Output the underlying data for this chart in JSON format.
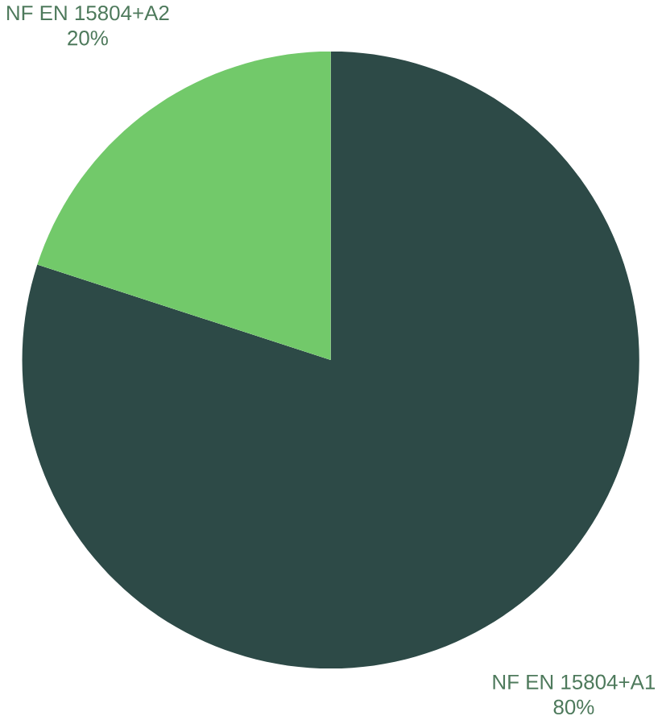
{
  "chart_data": {
    "type": "pie",
    "categories": [
      "NF EN 15804+A1",
      "NF EN 15804+A2"
    ],
    "values": [
      80,
      20
    ],
    "colors": [
      "#2d4a47",
      "#72c96a"
    ],
    "value_labels": [
      "80%",
      "20%"
    ]
  }
}
